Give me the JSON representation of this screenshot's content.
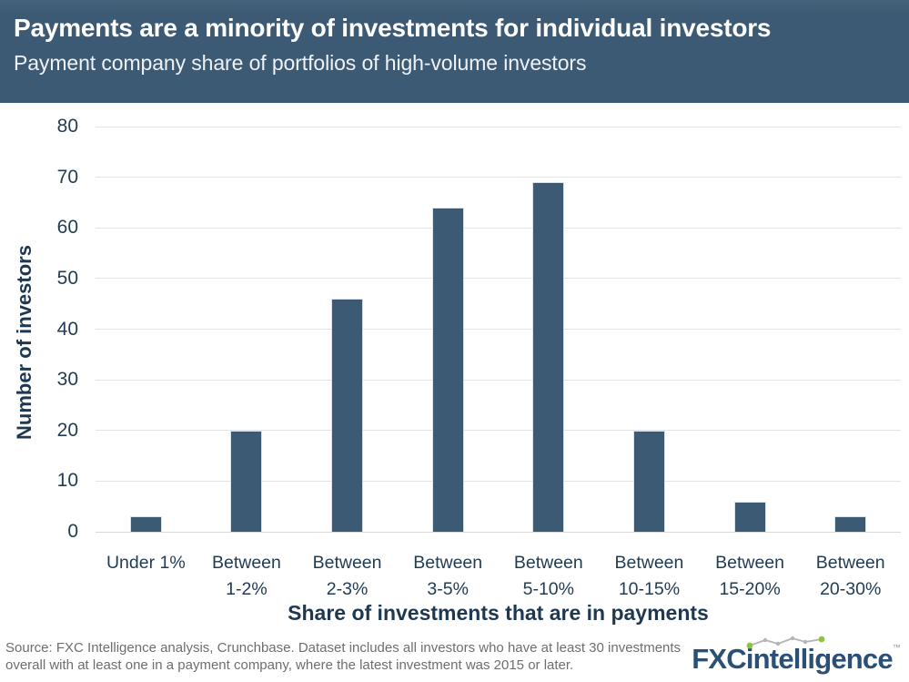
{
  "header": {
    "title": "Payments are a minority of investments for individual investors",
    "subtitle": "Payment company share of portfolios of high-volume investors",
    "background_color": "#3c5a74",
    "text_color": "#ffffff"
  },
  "chart_data": {
    "type": "bar",
    "categories": [
      "Under 1%",
      "Between 1-2%",
      "Between 2-3%",
      "Between 3-5%",
      "Between 5-10%",
      "Between 10-15%",
      "Between 15-20%",
      "Between 20-30%"
    ],
    "tick_label_lines": [
      [
        "Under 1%",
        ""
      ],
      [
        "Between",
        "1-2%"
      ],
      [
        "Between",
        "2-3%"
      ],
      [
        "Between",
        "3-5%"
      ],
      [
        "Between",
        "5-10%"
      ],
      [
        "Between",
        "10-15%"
      ],
      [
        "Between",
        "15-20%"
      ],
      [
        "Between",
        "20-30%"
      ]
    ],
    "values": [
      3,
      20,
      46,
      64,
      69,
      20,
      6,
      3
    ],
    "title": "Payments are a minority of investments for individual investors",
    "subtitle": "Payment company share of portfolios of high-volume investors",
    "xlabel": "Share of investments that are in payments",
    "ylabel": "Number of investors",
    "ylim": [
      0,
      80
    ],
    "yticks": [
      0,
      10,
      20,
      30,
      40,
      50,
      60,
      70,
      80
    ],
    "grid": true,
    "legend": "none",
    "bar_color": "#3c5a74",
    "axis_text_color": "#223c55",
    "gridline_color": "#e4e4e4"
  },
  "footer": {
    "source_line1": "Source: FXC Intelligence analysis, Crunchbase. Dataset includes all investors who have at least 30 investments",
    "source_line2": "overall with at least one in a payment company, where the latest investment was 2015 or later.",
    "logo": {
      "text_fxc": "FXC",
      "text_intelligence": "intelligence",
      "trademark": "™",
      "blue": "#2a5078",
      "green": "#8fc23f",
      "sparkline_gray": "#b5b5b5"
    }
  }
}
